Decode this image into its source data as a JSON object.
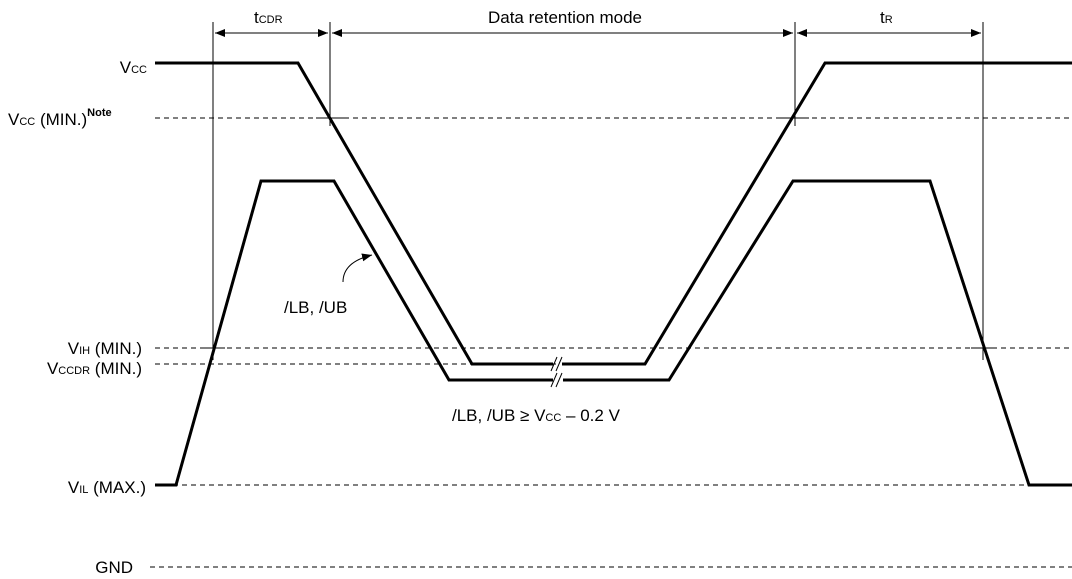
{
  "levels": {
    "vcc": {
      "main": "V",
      "sub": "CC",
      "suffix": ""
    },
    "vcc_min": {
      "main": "V",
      "sub": "CC",
      "suffix": " (MIN.)",
      "note": "Note"
    },
    "vih_min": {
      "main": "V",
      "sub": "IH",
      "suffix": " (MIN.)"
    },
    "vccdr_min": {
      "main": "V",
      "sub": "CCDR",
      "suffix": " (MIN.)"
    },
    "vil_max": {
      "main": "V",
      "sub": "IL",
      "suffix": " (MAX.)"
    },
    "gnd": "GND"
  },
  "timing": {
    "tcdr": {
      "main": "t",
      "sub": "CDR"
    },
    "mode": "Data retention mode",
    "tr": {
      "main": "t",
      "sub": "R"
    }
  },
  "signals": {
    "lb_ub": "/LB, /UB",
    "condition": {
      "prefix": "/LB, /UB ≥ V",
      "sub": "CC",
      "suffix": " – 0.2 V"
    }
  }
}
